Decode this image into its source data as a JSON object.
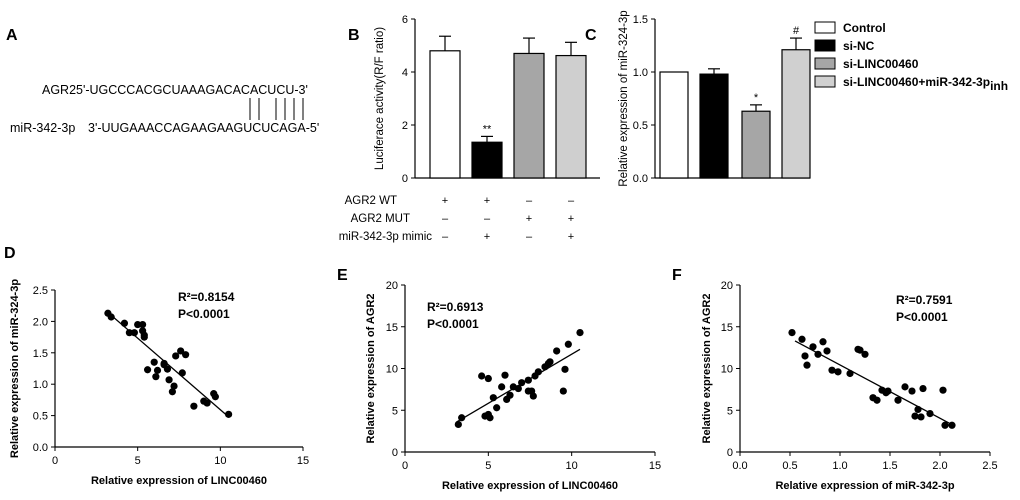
{
  "panels": {
    "A": "A",
    "B": "B",
    "C": "C",
    "D": "D",
    "E": "E",
    "F": "F"
  },
  "panelA": {
    "gene_label": "AGR2",
    "gene_seq": "5'-UGCCCACGCUAAAGACACACUCU-3'",
    "mirna_label": "miR-342-3p",
    "mirna_seq": "3'-UUGAAACCAGAAGAAGUCUCAGA-5'"
  },
  "chart_data": [
    {
      "panel": "B",
      "type": "bar",
      "ylabel": "Luciferace activity(R/F ratio)",
      "ylim": [
        0,
        6
      ],
      "yticks": [
        "0",
        "2",
        "4",
        "6"
      ],
      "values": [
        4.8,
        1.35,
        4.7,
        4.62
      ],
      "errors": [
        0.55,
        0.22,
        0.58,
        0.5
      ],
      "colors": [
        "#ffffff",
        "#000000",
        "#a6a6a6",
        "#cfcfcf"
      ],
      "significance": [
        "",
        "**",
        "",
        ""
      ],
      "table": [
        {
          "label": "AGR2 WT",
          "marks": [
            "+",
            "+",
            "–",
            "–"
          ]
        },
        {
          "label": "AGR2 MUT",
          "marks": [
            "–",
            "–",
            "+",
            "+"
          ]
        },
        {
          "label": "miR-342-3p mimic",
          "marks": [
            "–",
            "+",
            "–",
            "+"
          ]
        }
      ]
    },
    {
      "panel": "C",
      "type": "bar",
      "ylabel": "Relative expression of miR-324-3p",
      "ylim": [
        0,
        1.5
      ],
      "yticks": [
        "0.0",
        "0.5",
        "1.0",
        "1.5"
      ],
      "categories": [
        "Control",
        "si-NC",
        "si-LINC00460",
        "si-LINC00460+miR-342-3p inh"
      ],
      "values": [
        1.0,
        0.98,
        0.63,
        1.21
      ],
      "errors": [
        0,
        0.05,
        0.06,
        0.11
      ],
      "colors": [
        "#ffffff",
        "#000000",
        "#a6a6a6",
        "#d0d0d0"
      ],
      "significance": [
        "",
        "",
        "*",
        "#"
      ],
      "legend": [
        {
          "text": "Control",
          "sub": ""
        },
        {
          "text": "si-NC",
          "sub": ""
        },
        {
          "text": "si-LINC00460",
          "sub": ""
        },
        {
          "text": "si-LINC00460+miR-342-3p",
          "sub": "inh"
        }
      ]
    },
    {
      "panel": "D",
      "type": "scatter",
      "xlabel": "Relative expression of LINC00460",
      "ylabel": "Relative expression of miR-324-3p",
      "xlim": [
        0,
        15
      ],
      "ylim": [
        0,
        2.5
      ],
      "xticks": [
        "0",
        "5",
        "10",
        "15"
      ],
      "yticks": [
        "0.0",
        "0.5",
        "1.0",
        "1.5",
        "2.0",
        "2.5"
      ],
      "r2": "R²=0.8154",
      "p": "P<0.0001",
      "fit": [
        [
          3.3,
          2.12
        ],
        [
          10.5,
          0.48
        ]
      ],
      "x": [
        3.2,
        3.4,
        4.2,
        4.5,
        4.8,
        5.0,
        5.3,
        5.3,
        5.4,
        5.4,
        5.6,
        6.0,
        6.1,
        6.2,
        6.6,
        6.6,
        6.8,
        6.9,
        7.1,
        7.2,
        7.3,
        7.6,
        7.7,
        7.9,
        8.4,
        9.0,
        9.2,
        9.6,
        9.7,
        10.5
      ],
      "y": [
        2.13,
        2.07,
        1.97,
        1.82,
        1.82,
        1.95,
        1.95,
        1.85,
        1.78,
        1.75,
        1.23,
        1.35,
        1.12,
        1.22,
        1.33,
        1.31,
        1.24,
        1.07,
        0.88,
        0.97,
        1.45,
        1.53,
        1.18,
        1.47,
        0.65,
        0.73,
        0.7,
        0.85,
        0.8,
        0.52
      ]
    },
    {
      "panel": "E",
      "type": "scatter",
      "xlabel": "Relative expression of LINC00460",
      "ylabel": "Relative expression of AGR2",
      "xlim": [
        0,
        15
      ],
      "ylim": [
        0,
        20
      ],
      "xticks": [
        "0",
        "5",
        "10",
        "15"
      ],
      "yticks": [
        "0",
        "5",
        "10",
        "15",
        "20"
      ],
      "r2": "R²=0.6913",
      "p": "P<0.0001",
      "fit": [
        [
          3.1,
          3.6
        ],
        [
          10.5,
          12.3
        ]
      ],
      "x": [
        3.2,
        3.4,
        4.6,
        4.8,
        5.0,
        5.0,
        5.1,
        5.3,
        5.5,
        5.8,
        6.0,
        6.1,
        6.3,
        6.5,
        6.8,
        7.0,
        7.4,
        7.4,
        7.6,
        7.7,
        7.8,
        8.0,
        8.4,
        8.6,
        8.7,
        9.1,
        9.5,
        9.6,
        9.8,
        10.5
      ],
      "y": [
        3.3,
        4.1,
        9.1,
        4.3,
        8.8,
        4.5,
        4.1,
        6.5,
        5.3,
        7.8,
        9.2,
        6.3,
        6.8,
        7.8,
        7.6,
        8.3,
        8.6,
        7.3,
        7.3,
        6.7,
        9.1,
        9.6,
        10.2,
        10.6,
        10.8,
        12.1,
        7.3,
        9.9,
        12.9,
        14.3
      ]
    },
    {
      "panel": "F",
      "type": "scatter",
      "xlabel": "Relative expression of miR-342-3p",
      "ylabel": "Relative expression of AGR2",
      "xlim": [
        0,
        2.5
      ],
      "ylim": [
        0,
        20
      ],
      "xticks": [
        "0.0",
        "0.5",
        "1.0",
        "1.5",
        "2.0",
        "2.5"
      ],
      "yticks": [
        "0",
        "5",
        "10",
        "15",
        "20"
      ],
      "r2": "R²=0.7591",
      "p": "P<0.0001",
      "fit": [
        [
          0.55,
          13.3
        ],
        [
          2.1,
          3.4
        ]
      ],
      "x": [
        0.52,
        0.62,
        0.65,
        0.67,
        0.73,
        0.78,
        0.83,
        0.87,
        0.92,
        0.98,
        1.1,
        1.18,
        1.2,
        1.25,
        1.33,
        1.37,
        1.42,
        1.46,
        1.48,
        1.58,
        1.65,
        1.72,
        1.75,
        1.78,
        1.81,
        1.83,
        1.9,
        2.03,
        2.05,
        2.12
      ],
      "y": [
        14.3,
        13.5,
        11.5,
        10.4,
        12.6,
        11.7,
        13.2,
        12.1,
        9.8,
        9.6,
        9.4,
        12.3,
        12.2,
        11.7,
        6.5,
        6.2,
        7.4,
        7.1,
        7.3,
        6.2,
        7.8,
        7.3,
        4.3,
        5.1,
        4.2,
        7.6,
        4.6,
        7.4,
        3.2,
        3.2
      ]
    }
  ]
}
